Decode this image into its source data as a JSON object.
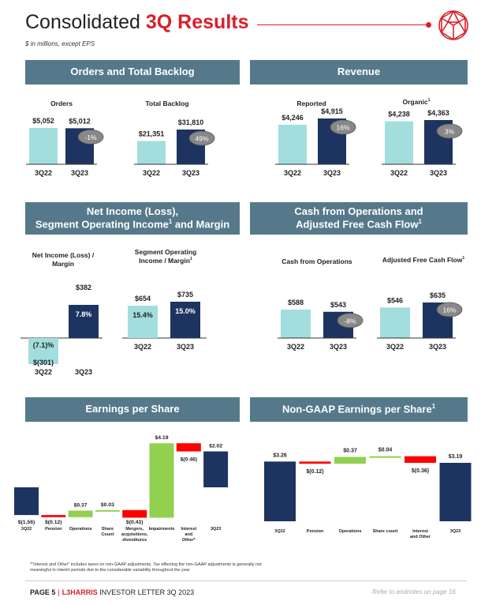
{
  "header": {
    "title_plain": "Consolidated ",
    "title_accent": "3Q Results",
    "subtitle": "$ in millions, except EPS"
  },
  "sections": {
    "orders": {
      "title": "Orders and Total Backlog"
    },
    "revenue": {
      "title": "Revenue"
    },
    "net_income": {
      "title_line1": "Net Income (Loss),",
      "title_line2a": "Segment Operating Income",
      "title_sup": "1",
      "title_line2b": " and Margin"
    },
    "cash": {
      "title_line1": "Cash from Operations and",
      "title_line2": "Adjusted Free Cash Flow",
      "title_sup": "1"
    },
    "eps": {
      "title": "Earnings per Share"
    },
    "nongaap": {
      "title": "Non-GAAP Earnings per Share",
      "title_sup": "1"
    }
  },
  "colors": {
    "light_bar": "#a3dede",
    "dark_bar": "#1d3461",
    "header_band": "#55798a",
    "accent_red": "#d81f2a",
    "positive": "#92d050",
    "negative": "#ff0000",
    "badge": "#888888"
  },
  "chart_data": [
    {
      "id": "orders",
      "type": "bar",
      "title": "Orders",
      "categories": [
        "3Q22",
        "3Q23"
      ],
      "values": [
        5052,
        5012
      ],
      "labels": [
        "$5,052",
        "$5,012"
      ],
      "badge": "-1%"
    },
    {
      "id": "backlog",
      "type": "bar",
      "title": "Total Backlog",
      "categories": [
        "3Q22",
        "3Q23"
      ],
      "values": [
        21351,
        31810
      ],
      "labels": [
        "$21,351",
        "$31,810"
      ],
      "badge": "49%"
    },
    {
      "id": "rev_reported",
      "type": "bar",
      "title": "Reported",
      "categories": [
        "3Q22",
        "3Q23"
      ],
      "values": [
        4246,
        4915
      ],
      "labels": [
        "$4,246",
        "$4,915"
      ],
      "badge": "16%"
    },
    {
      "id": "rev_organic",
      "type": "bar",
      "title": "Organic",
      "title_sup": "1",
      "categories": [
        "3Q22",
        "3Q23"
      ],
      "values": [
        4238,
        4363
      ],
      "labels": [
        "$4,238",
        "$4,363"
      ],
      "badge": "3%"
    },
    {
      "id": "net_income",
      "type": "bar",
      "title_line1": "Net Income (Loss) /",
      "title_line2": "Margin",
      "categories": [
        "3Q22",
        "3Q23"
      ],
      "values": [
        -301,
        382
      ],
      "labels": [
        "$(301)",
        "$382"
      ],
      "margins": [
        "(7.1)%",
        "7.8%"
      ]
    },
    {
      "id": "seg_op",
      "type": "bar",
      "title_line1": "Segment Operating",
      "title_line2": "Income / Margin",
      "title_sup": "1",
      "categories": [
        "3Q22",
        "3Q23"
      ],
      "values": [
        654,
        735
      ],
      "labels": [
        "$654",
        "$735"
      ],
      "margins": [
        "15.4%",
        "15.0%"
      ]
    },
    {
      "id": "cfo",
      "type": "bar",
      "title": "Cash from Operations",
      "categories": [
        "3Q22",
        "3Q23"
      ],
      "values": [
        588,
        543
      ],
      "labels": [
        "$588",
        "$543"
      ],
      "badge": "-8%"
    },
    {
      "id": "afcf",
      "type": "bar",
      "title": "Adjusted Free Cash Flow",
      "title_sup": "1",
      "categories": [
        "3Q22",
        "3Q23"
      ],
      "values": [
        546,
        635
      ],
      "labels": [
        "$546",
        "$635"
      ],
      "badge": "16%"
    },
    {
      "id": "eps",
      "type": "waterfall",
      "categories": [
        "3Q22",
        "Pension",
        "Operations",
        "Share Count",
        "Mergers, acquisitions, divestitures",
        "Impairments",
        "Interest and Other*",
        "3Q23"
      ],
      "category_lines": [
        [
          "3Q22"
        ],
        [
          "Pension"
        ],
        [
          "Operations"
        ],
        [
          "Share",
          "Count"
        ],
        [
          "Mergers,",
          "acquisitions,",
          "divestitures"
        ],
        [
          "Impairments"
        ],
        [
          "Interest",
          "and",
          "Other*"
        ],
        [
          "3Q23"
        ]
      ],
      "values": [
        -1.56,
        -0.12,
        0.37,
        0.03,
        -0.43,
        4.19,
        -0.46,
        2.02
      ],
      "labels": [
        "$(1.56)",
        "$(0.12)",
        "$0.37",
        "$0.03",
        "$(0.43)",
        "$4.19",
        "$(0.46)",
        "$2.02"
      ],
      "kinds": [
        "total",
        "delta",
        "delta",
        "delta",
        "delta",
        "delta",
        "delta",
        "total"
      ]
    },
    {
      "id": "nongaap_eps",
      "type": "waterfall",
      "categories": [
        "3Q22",
        "Pension",
        "Operations",
        "Share count",
        "Interest and Other",
        "3Q23"
      ],
      "category_lines": [
        [
          "3Q22"
        ],
        [
          "Pension"
        ],
        [
          "Operations"
        ],
        [
          "Share count"
        ],
        [
          "Interest",
          "and Other"
        ],
        [
          "3Q23"
        ]
      ],
      "values": [
        3.26,
        -0.12,
        0.37,
        0.04,
        -0.36,
        3.19
      ],
      "labels": [
        "$3.26",
        "$(0.12)",
        "$0.37",
        "$0.04",
        "$(0.36)",
        "$3.19"
      ],
      "kinds": [
        "total",
        "delta",
        "delta",
        "delta",
        "delta",
        "total"
      ]
    }
  ],
  "footnote": "*\"Interest and Other\" includes taxes on non-GAAP adjustments. Tax effecting the non-GAAP adjustments is generally not meaningful in interim periods due to the considerable variability throughout the year",
  "footer": {
    "page": "PAGE 5",
    "separator": "|",
    "brand": "L3HARRIS",
    "doc": "INVESTOR LETTER 3Q 2023",
    "endnote": "Refer to endnotes on page 16"
  }
}
